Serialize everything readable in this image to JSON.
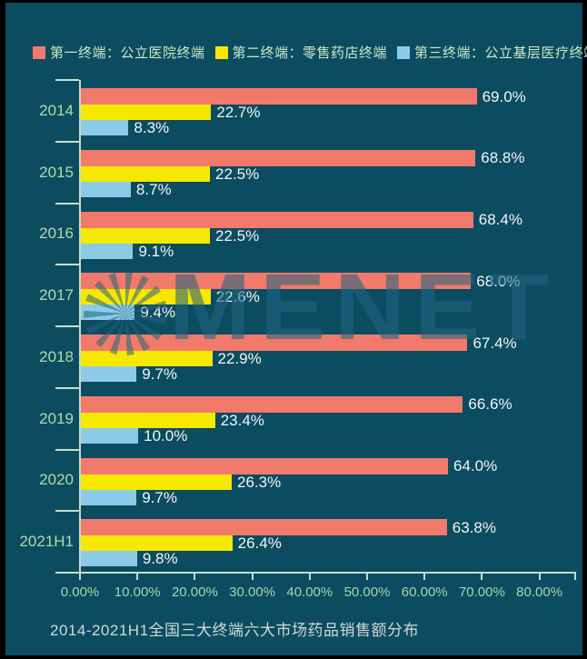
{
  "page": {
    "background_color": "#0b4c61",
    "frame_color": "#000000"
  },
  "legend": {
    "items": [
      {
        "label": "第一终端：公立医院终端",
        "color": "#f27a6a"
      },
      {
        "label": "第二终端：零售药店终端",
        "color": "#f6e800"
      },
      {
        "label": "第三终端：公立基层医疗终端",
        "color": "#8ccbe8"
      }
    ]
  },
  "chart_data": {
    "type": "bar",
    "orientation": "horizontal",
    "title": "2014-2021H1全国三大终端六大市场药品销售额分布",
    "categories": [
      "2014",
      "2015",
      "2016",
      "2017",
      "2018",
      "2019",
      "2020",
      "2021H1"
    ],
    "series": [
      {
        "name": "第一终端：公立医院终端",
        "color": "#f27a6a",
        "values": [
          69.0,
          68.8,
          68.4,
          68.0,
          67.4,
          66.6,
          64.0,
          63.8
        ]
      },
      {
        "name": "第二终端：零售药店终端",
        "color": "#f6e800",
        "values": [
          22.7,
          22.5,
          22.5,
          22.6,
          22.9,
          23.4,
          26.3,
          26.4
        ]
      },
      {
        "name": "第三终端：公立基层医疗终端",
        "color": "#8ccbe8",
        "values": [
          8.3,
          8.7,
          9.1,
          9.4,
          9.7,
          10.0,
          9.7,
          9.8
        ]
      }
    ],
    "value_label_suffix": "%",
    "x_axis": {
      "min": 0,
      "max": 80,
      "tick_labels": [
        "0.00%",
        "10.00%",
        "20.00%",
        "30.00%",
        "40.00%",
        "50.00%",
        "60.00%",
        "70.00%",
        "80.00%"
      ]
    },
    "grid": "off",
    "legend_position": "top",
    "watermark": "MENET"
  },
  "colors": {
    "label_green": "#b4dba6",
    "tick_label_green": "#a6d6ab",
    "legend_text": "#cfe6c6",
    "axis_line": "#c9dccb",
    "value_label": "#f4f6f4",
    "title_text": "#d4d8d4"
  }
}
